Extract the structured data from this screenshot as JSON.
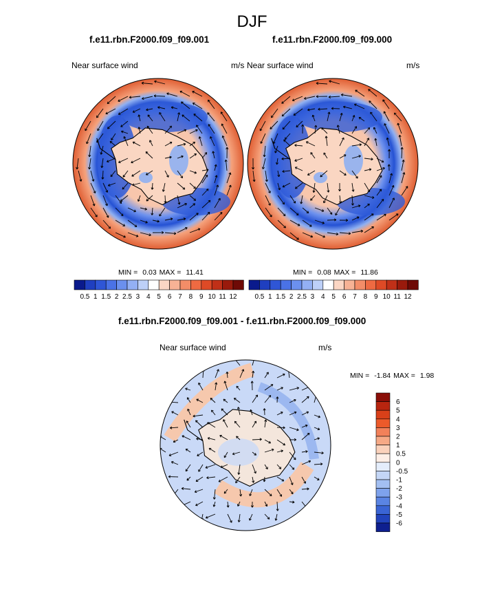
{
  "figure": {
    "title": "DJF"
  },
  "panels": [
    {
      "title": "f.e11.rbn.F2000.f09_f09.001",
      "variable": "Near surface wind",
      "units": "m/s",
      "min_label": "MIN =",
      "min": "0.03",
      "max_label": "MAX =",
      "max": "11.41"
    },
    {
      "title": "f.e11.rbn.F2000.f09_f09.000",
      "variable": "Near surface wind",
      "units": "m/s",
      "min_label": "MIN =",
      "min": "0.08",
      "max_label": "MAX =",
      "max": "11.86"
    },
    {
      "title": "f.e11.rbn.F2000.f09_f09.001 - f.e11.rbn.F2000.f09_f09.000",
      "variable": "Near surface wind",
      "units": "m/s",
      "min_label": "MIN =",
      "min": "-1.84",
      "max_label": "MAX =",
      "max": "1.98"
    }
  ],
  "colorbar_abs": {
    "labels": [
      "0.5",
      "1",
      "1.5",
      "2",
      "2.5",
      "3",
      "4",
      "5",
      "6",
      "7",
      "8",
      "9",
      "10",
      "11",
      "12"
    ],
    "colors": [
      "#0a1a8c",
      "#1f3fc0",
      "#2f56d6",
      "#4a72e6",
      "#6b90ee",
      "#93b0f4",
      "#bdd0f8",
      "#ffffff",
      "#fbd6c4",
      "#f7b295",
      "#f38d68",
      "#ee6a42",
      "#de4a26",
      "#c03018",
      "#991a0c",
      "#6e0a06"
    ]
  },
  "colorbar_diff": {
    "labels": [
      "6",
      "5",
      "4",
      "3",
      "2",
      "1",
      "0.5",
      "0",
      "-0.5",
      "-1",
      "-2",
      "-3",
      "-4",
      "-5",
      "-6"
    ],
    "colors": [
      "#8a0e08",
      "#b8250f",
      "#d94019",
      "#ec5a2a",
      "#f2815a",
      "#f6a986",
      "#fad1bb",
      "#fdeee6",
      "#e4edfb",
      "#c4d6f6",
      "#a3bff2",
      "#7ea2ec",
      "#5a84e3",
      "#3a64d4",
      "#2143bb",
      "#0e1f8f"
    ]
  },
  "map_colors": {
    "ocean_strong": "#e8643a",
    "ocean_mid": "#f5a27c",
    "jet_weak": "#2f5bd8",
    "jet_light": "#8fb0f2",
    "land": "#fad6c2",
    "diff_base": "#c9d9f7",
    "diff_pos": "#f6c8ad",
    "diff_neg": "#9cb8f0"
  }
}
